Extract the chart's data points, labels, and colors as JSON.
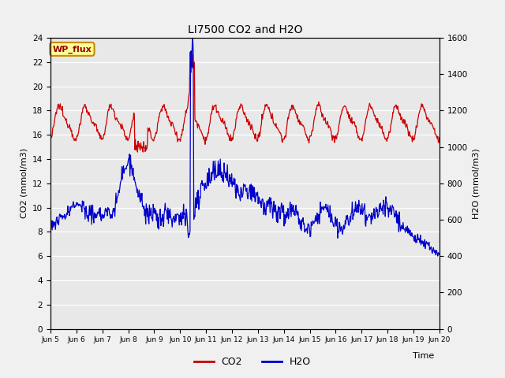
{
  "title": "LI7500 CO2 and H2O",
  "xlabel": "Time",
  "ylabel_left": "CO2 (mmol/m3)",
  "ylabel_right": "H2O (mmol/m3)",
  "xlim_days": [
    5,
    20
  ],
  "ylim_left": [
    0,
    24
  ],
  "ylim_right": [
    0,
    1600
  ],
  "yticks_left": [
    0,
    2,
    4,
    6,
    8,
    10,
    12,
    14,
    16,
    18,
    20,
    22,
    24
  ],
  "yticks_right": [
    0,
    200,
    400,
    600,
    800,
    1000,
    1200,
    1400,
    1600
  ],
  "xtick_labels": [
    "Jun 5",
    "Jun 6",
    "Jun 7",
    "Jun 8",
    "Jun 9",
    "Jun 10",
    "Jun 11",
    "Jun 12",
    "Jun 13",
    "Jun 14",
    "Jun 15",
    "Jun 16",
    "Jun 17",
    "Jun 18",
    "Jun 19",
    "Jun 20"
  ],
  "bg_color": "#e8e8e8",
  "fig_bg_color": "#f0f0f0",
  "co2_color": "#cc0000",
  "h2o_color": "#0000cc",
  "annotation_text": "WP_flux",
  "annotation_box_color": "#ffff99",
  "annotation_box_edge": "#cc8800",
  "annotation_text_color": "#990000"
}
